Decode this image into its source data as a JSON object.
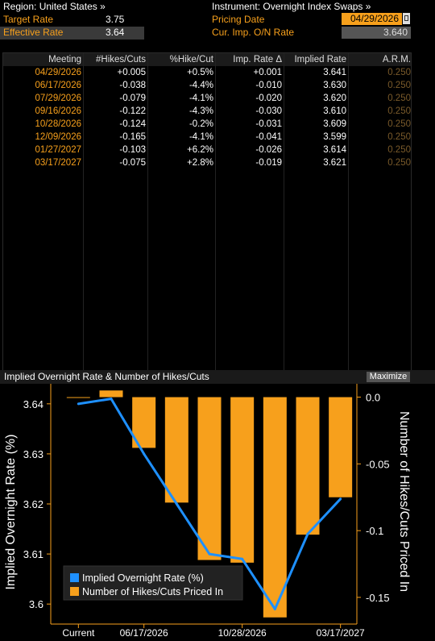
{
  "header": {
    "region_label": "Region: United States »",
    "instrument_label": "Instrument: Overnight Index Swaps »",
    "target_rate_label": "Target Rate",
    "target_rate_value": "3.75",
    "effective_rate_label": "Effective Rate",
    "effective_rate_value": "3.64",
    "pricing_date_label": "Pricing Date",
    "pricing_date_value": "04/29/2026",
    "cur_imp_label": "Cur. Imp. O/N Rate",
    "cur_imp_value": "3.640"
  },
  "table": {
    "headers": [
      "Meeting",
      "#Hikes/Cuts",
      "%Hike/Cut",
      "Imp. Rate Δ",
      "Implied Rate",
      "A.R.M."
    ],
    "rows": [
      [
        "04/29/2026",
        "+0.005",
        "+0.5%",
        "+0.001",
        "3.641",
        "0.250"
      ],
      [
        "06/17/2026",
        "-0.038",
        "-4.4%",
        "-0.010",
        "3.630",
        "0.250"
      ],
      [
        "07/29/2026",
        "-0.079",
        "-4.1%",
        "-0.020",
        "3.620",
        "0.250"
      ],
      [
        "09/16/2026",
        "-0.122",
        "-4.3%",
        "-0.030",
        "3.610",
        "0.250"
      ],
      [
        "10/28/2026",
        "-0.124",
        "-0.2%",
        "-0.031",
        "3.609",
        "0.250"
      ],
      [
        "12/09/2026",
        "-0.165",
        "-4.1%",
        "-0.041",
        "3.599",
        "0.250"
      ],
      [
        "01/27/2027",
        "-0.103",
        "+6.2%",
        "-0.026",
        "3.614",
        "0.250"
      ],
      [
        "03/17/2027",
        "-0.075",
        "+2.8%",
        "-0.019",
        "3.621",
        "0.250"
      ]
    ]
  },
  "chart_panel": {
    "title": "Implied Overnight Rate & Number of Hikes/Cuts",
    "maximize_label": "Maximize"
  },
  "chart_data": {
    "type": "bar",
    "categories": [
      "Current",
      "04/29/2026",
      "06/17/2026",
      "07/29/2026",
      "09/16/2026",
      "10/28/2026",
      "12/09/2026",
      "01/27/2027",
      "03/17/2027"
    ],
    "x_tick_labels": [
      "Current",
      "06/17/2026",
      "10/28/2026",
      "03/17/2027"
    ],
    "series": [
      {
        "name": "Implied Overnight Rate (%)",
        "type": "line",
        "axis": "left",
        "color": "#1e90ff",
        "values": [
          3.64,
          3.641,
          3.63,
          3.62,
          3.61,
          3.609,
          3.599,
          3.614,
          3.621
        ]
      },
      {
        "name": "Number of Hikes/Cuts Priced In",
        "type": "bar",
        "axis": "right",
        "color": "#f7a01c",
        "values": [
          0,
          0.005,
          -0.038,
          -0.079,
          -0.122,
          -0.124,
          -0.165,
          -0.103,
          -0.075
        ]
      }
    ],
    "ylabel": "Implied Overnight Rate (%)",
    "y2label": "Number of Hikes/Cuts Priced In",
    "ylim": [
      3.596,
      3.644
    ],
    "yticks": [
      "3.64",
      "3.63",
      "3.62",
      "3.61",
      "3.6"
    ],
    "y2lim": [
      -0.17,
      0.01
    ],
    "y2ticks": [
      "0.0",
      "-0.05",
      "-0.1",
      "-0.15"
    ],
    "legend_position": "bottom-left",
    "grid": false
  }
}
